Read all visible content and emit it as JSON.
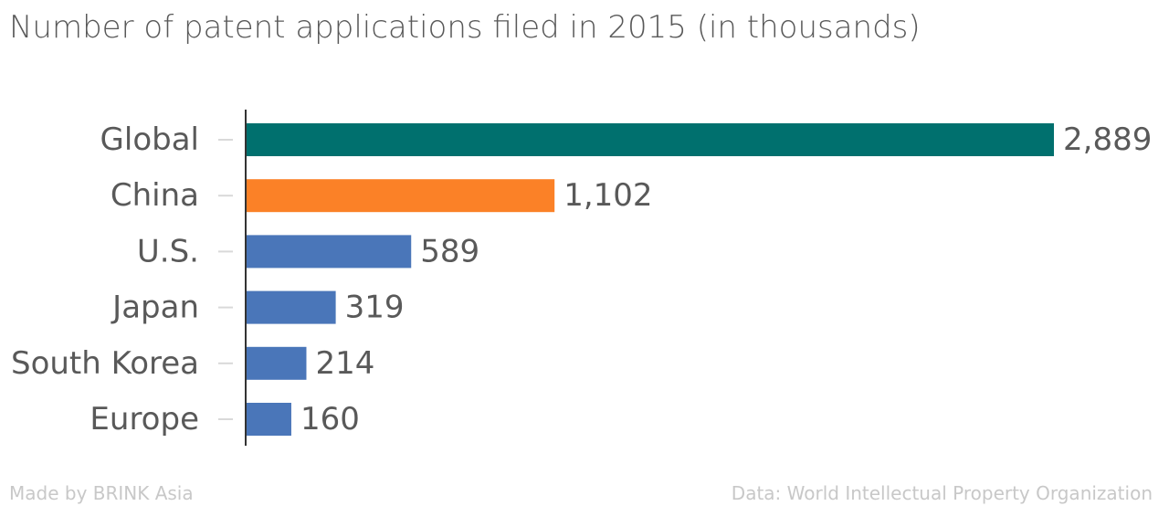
{
  "chart_data": {
    "type": "bar",
    "orientation": "horizontal",
    "title": "Number of patent applications filed in 2015 (in thousands)",
    "categories": [
      "Global",
      "China",
      "U.S.",
      "Japan",
      "South Korea",
      "Europe"
    ],
    "values": [
      2889,
      1102,
      589,
      319,
      214,
      160
    ],
    "value_labels": [
      "2,889",
      "1,102",
      "589",
      "319",
      "214",
      "160"
    ],
    "bar_colors": [
      "#00706e",
      "#fb8127",
      "#4a76b9",
      "#4a76b9",
      "#4a76b9",
      "#4a76b9"
    ],
    "xlim": [
      0,
      2889
    ],
    "grid": false,
    "legend": "none"
  },
  "footer": {
    "left": "Made by BRINK Asia",
    "right": "Data: World Intellectual Property Organization"
  }
}
